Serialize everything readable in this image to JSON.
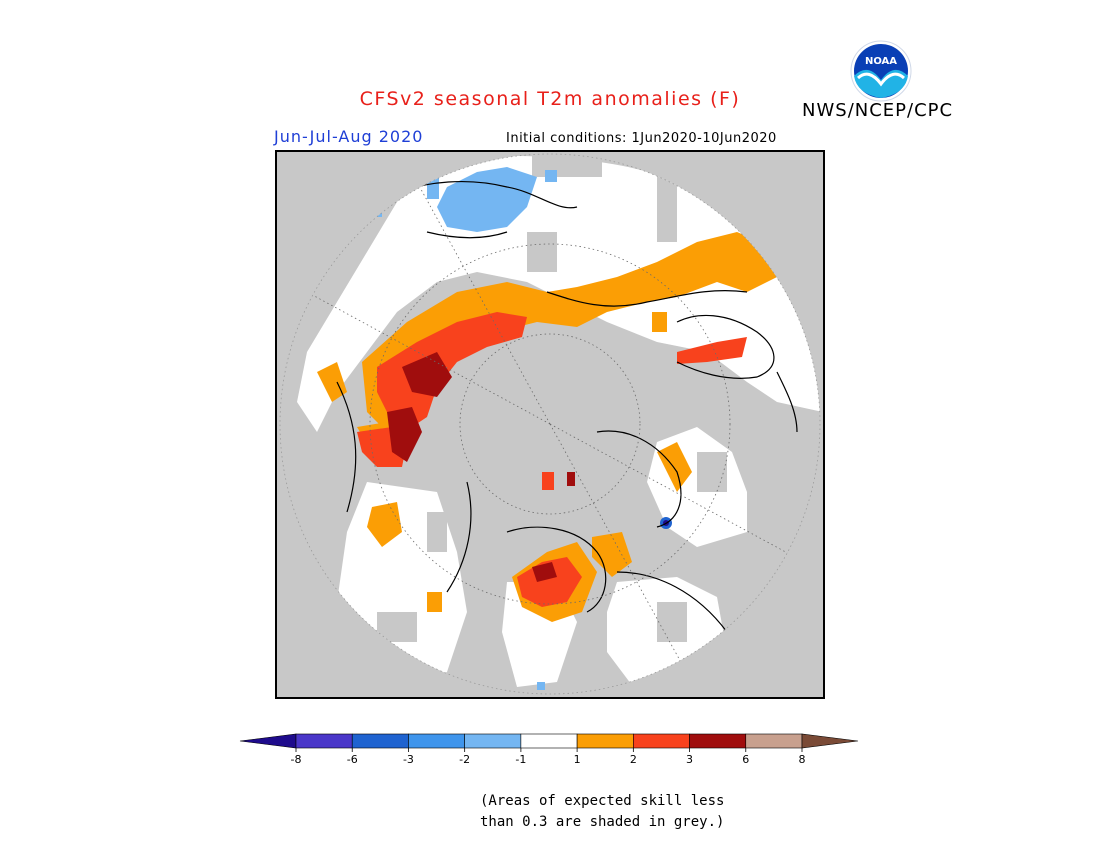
{
  "header": {
    "title": "CFSv2 seasonal T2m anomalies (F)",
    "agency": "NWS/NCEP/CPC",
    "logo_text": "NOAA",
    "season": "Jun-Jul-Aug 2020",
    "initial_conditions": "Initial conditions: 1Jun2020-10Jun2020"
  },
  "colors": {
    "title": "#e8201a",
    "season": "#1f3fd6",
    "skill_mask_grey": "#c8c8c8",
    "near_normal": "#ffffff"
  },
  "legend": {
    "bins": [
      {
        "range": "< -8",
        "color": "#1e0b8c"
      },
      {
        "range": "-8 to -6",
        "color": "#4a37c9"
      },
      {
        "range": "-6 to -3",
        "color": "#1f63d0"
      },
      {
        "range": "-3 to -2",
        "color": "#3f95ec"
      },
      {
        "range": "-2 to -1",
        "color": "#74b6f2"
      },
      {
        "range": "-1 to 1",
        "color": "#ffffff"
      },
      {
        "range": "1 to 2",
        "color": "#fb9e05"
      },
      {
        "range": "2 to 3",
        "color": "#f8421d"
      },
      {
        "range": "3 to 6",
        "color": "#a00d0d"
      },
      {
        "range": "6 to 8",
        "color": "#c8a08e"
      },
      {
        "range": "> 8",
        "color": "#7a4a36"
      }
    ],
    "tick_labels": [
      "-8",
      "-6",
      "-3",
      "-2",
      "-1",
      "1",
      "2",
      "3",
      "6",
      "8"
    ]
  },
  "footnote": "(Areas of expected skill less\nthan 0.3 are shaded in grey.)"
}
